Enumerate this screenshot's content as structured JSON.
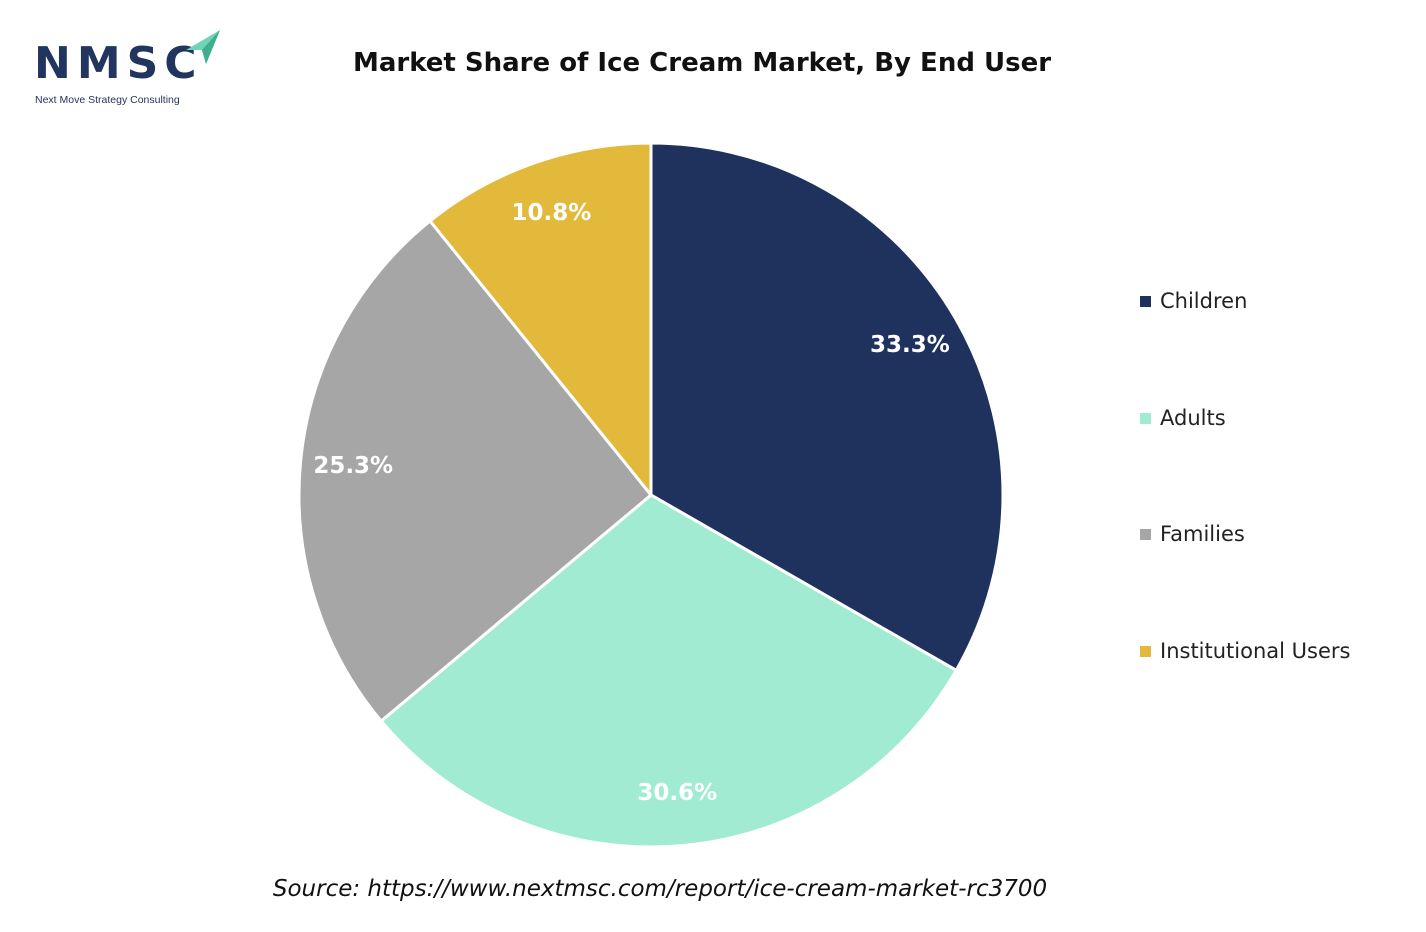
{
  "logo": {
    "text": "NMSC",
    "tagline": "Next Move Strategy Consulting",
    "colors": {
      "text": "#22355f",
      "arrow": "#6fd3b5"
    }
  },
  "chart_data": {
    "type": "pie",
    "title": "Market Share of Ice Cream Market, By End User",
    "categories": [
      "Children",
      "Adults",
      "Families",
      "Institutional Users"
    ],
    "values": [
      33.3,
      30.6,
      25.3,
      10.8
    ],
    "labels": [
      "33.3%",
      "30.6%",
      "25.3%",
      "10.8%"
    ],
    "colors": [
      "#1f325e",
      "#a1ebd2",
      "#a6a6a6",
      "#e2b93b"
    ],
    "start_angle": "12 o'clock",
    "direction": "clockwise",
    "legend_position": "right"
  },
  "source": "Source: https://www.nextmsc.com/report/ice-cream-market-rc3700"
}
